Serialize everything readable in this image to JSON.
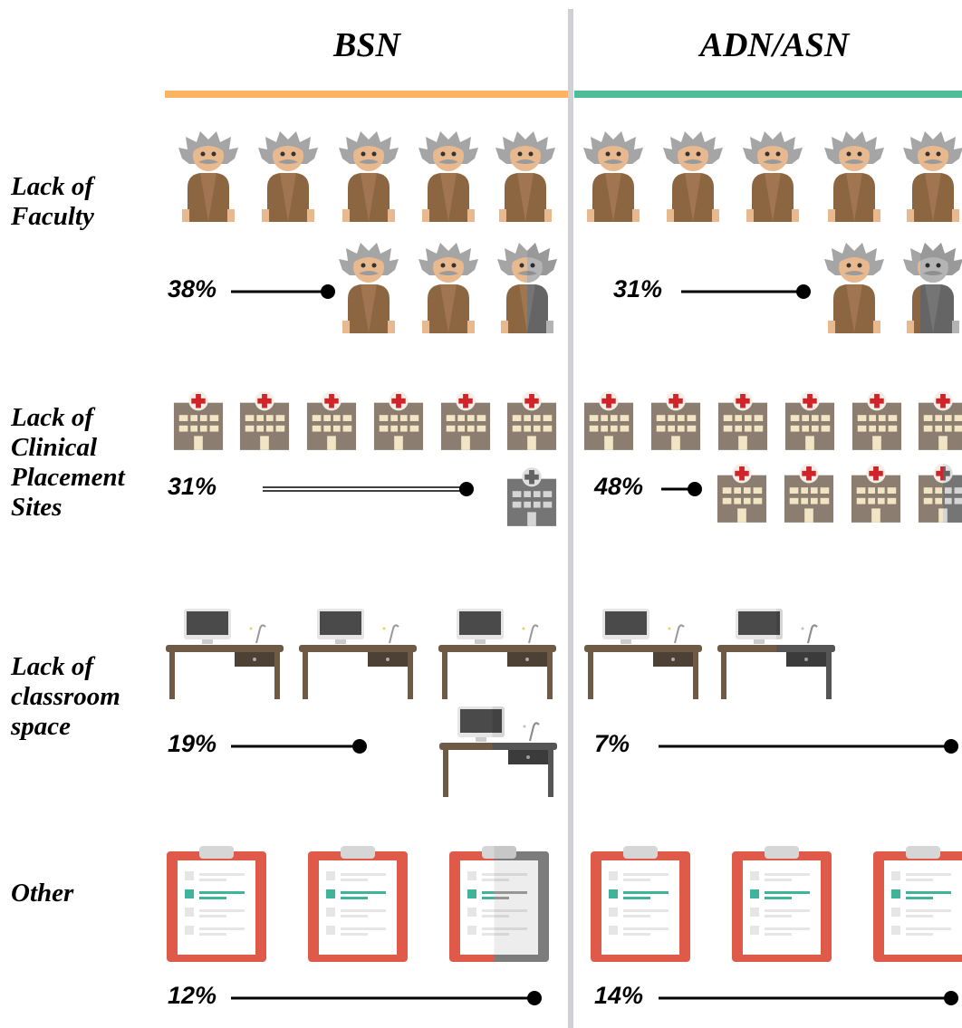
{
  "columns": [
    "BSN",
    "ADN/ASN"
  ],
  "rows": [
    {
      "label": [
        "Lack of",
        "Faculty"
      ],
      "values": [
        "38%",
        "31%"
      ]
    },
    {
      "label": [
        "Lack of",
        "Clinical",
        "Placement",
        "Sites"
      ],
      "values": [
        "31%",
        "48%"
      ]
    },
    {
      "label": [
        "Lack of",
        "classroom",
        "space"
      ],
      "values": [
        "19%",
        "7%"
      ]
    },
    {
      "label": [
        "Other"
      ],
      "values": [
        "12%",
        "14%"
      ]
    }
  ]
}
